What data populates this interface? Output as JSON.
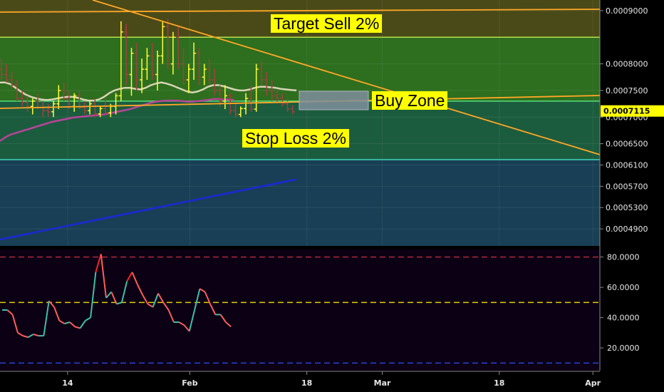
{
  "chart_data": [
    {
      "type": "candlestick",
      "annotations": {
        "target": "Target Sell 2%",
        "buy": "Buy Zone",
        "stop": "Stop Loss 2%"
      },
      "y_ticks": [
        "0.0009000",
        "0.0008000",
        "0.0007500",
        "0.0007000",
        "0.0006500",
        "0.0006100",
        "0.0005700",
        "0.0005300",
        "0.0004900"
      ],
      "y_tick_values": [
        0.0009,
        0.0008,
        0.00075,
        0.0007,
        0.00065,
        0.00061,
        0.00057,
        0.00053,
        0.00049
      ],
      "current_price": "0.0007115",
      "ylim": [
        0.000458,
        0.00092
      ],
      "levels": {
        "target_line": 0.00085,
        "upper_green_line": 0.00073,
        "stop_line": 0.00062
      },
      "bands": [
        {
          "from": 0.00085,
          "to": 0.00092,
          "color": "#4a4a18"
        },
        {
          "from": 0.00073,
          "to": 0.00085,
          "color": "#2d6e1f"
        },
        {
          "from": 0.00062,
          "to": 0.00073,
          "color": "#1c5c3e"
        },
        {
          "from": 0.000458,
          "to": 0.00062,
          "color": "#183f55"
        }
      ],
      "x_ticks": [
        "14",
        "Feb",
        "18",
        "Mar",
        "18",
        "Apr"
      ],
      "x_tick_index": [
        13,
        36.5,
        59,
        73.5,
        96,
        114
      ]
    },
    {
      "type": "line",
      "ylim": [
        5,
        85
      ],
      "y_ticks": [
        "80.0000",
        "60.0000",
        "40.0000",
        "20.0000"
      ],
      "y_tick_values": [
        80,
        60,
        40,
        20
      ],
      "reference_lines": [
        80,
        50,
        10
      ],
      "series": [
        {
          "values": [
            45,
            45,
            42,
            30,
            28,
            27,
            29,
            28,
            28,
            51,
            47,
            38,
            36,
            37,
            34,
            33,
            38,
            40,
            70,
            82,
            53,
            57,
            49,
            50,
            64,
            70,
            62,
            55,
            49,
            47,
            56,
            50,
            45,
            37,
            37,
            35,
            31,
            45,
            59,
            57,
            49,
            42,
            42,
            37,
            34
          ]
        }
      ],
      "colors": {
        "up": "#3fbfa8",
        "down": "#ff5c5c",
        "overbought": "#ff2222"
      }
    }
  ],
  "colors": {
    "orange": "#ffa726",
    "ma_fast": "#d9d4b4",
    "ma_mid": "#b8449a",
    "ma_slow": "#1a28d8",
    "candle_up": "#ffff33",
    "candle_down": "#a04040",
    "axis_bg": "#000000",
    "osc_bg": "#0b0014",
    "buy_box": "#808e9c"
  }
}
